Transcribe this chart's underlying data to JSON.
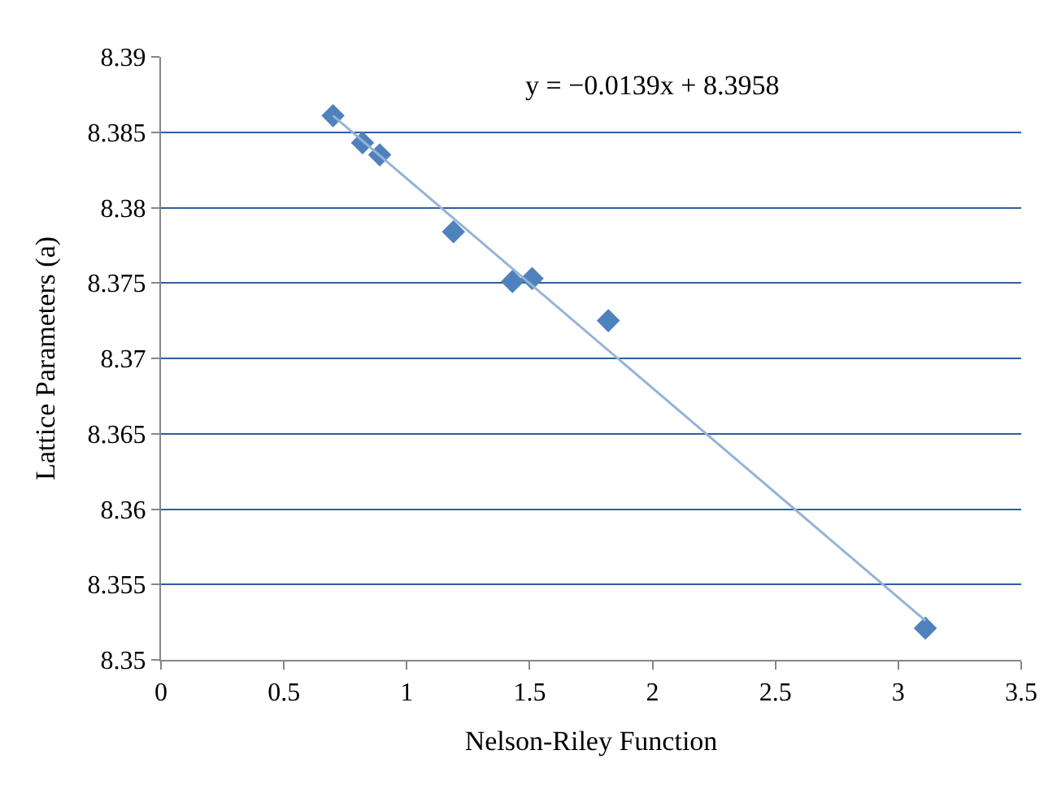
{
  "chart_data": {
    "type": "scatter",
    "xlabel": "Nelson-Riley Function",
    "ylabel": "Lattice Parameters (a)",
    "annotations": [
      "y = −0.0139x + 8.3958"
    ],
    "xlim": [
      0,
      3.5
    ],
    "xticks": [
      0,
      0.5,
      1,
      1.5,
      2,
      2.5,
      3,
      3.5
    ],
    "ylim": [
      8.35,
      8.39
    ],
    "yticks": [
      8.35,
      8.355,
      8.36,
      8.365,
      8.37,
      8.375,
      8.38,
      8.385,
      8.39
    ],
    "grid": "y",
    "marker": "diamond",
    "legend": false,
    "series": [
      {
        "color": "#4f81bd",
        "x": [
          0.7,
          0.82,
          0.89,
          1.19,
          1.43,
          1.51,
          1.82,
          3.11
        ],
        "values": [
          8.3861,
          8.3843,
          8.3835,
          8.3784,
          8.3751,
          8.3753,
          8.3725,
          8.3521
        ]
      },
      {
        "type": "line",
        "marker": "none",
        "color": "#95b3d7",
        "x": [
          0.7,
          3.11
        ],
        "values": [
          8.3861,
          8.3526
        ]
      }
    ]
  }
}
